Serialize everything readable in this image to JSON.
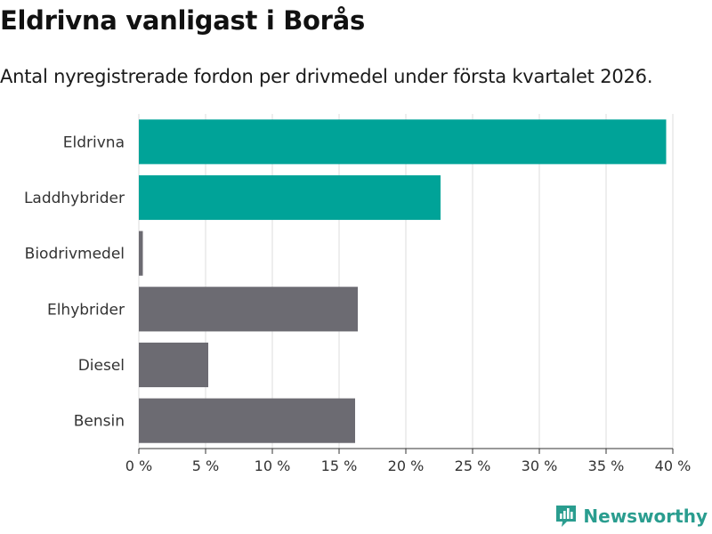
{
  "header": {
    "title": "Eldrivna vanligast i Borås",
    "subtitle": "Antal nyregistrerade fordon per drivmedel under första kvartalet 2026."
  },
  "brand": {
    "name": "Newsworthy",
    "icon": "newsworthy-logo-icon"
  },
  "colors": {
    "highlight": "#00A398",
    "default": "#6C6B72",
    "grid": "#dddddd"
  },
  "chart_data": {
    "type": "bar",
    "orientation": "horizontal",
    "categories": [
      "Eldrivna",
      "Laddhybrider",
      "Biodrivmedel",
      "Elhybrider",
      "Diesel",
      "Bensin"
    ],
    "values": [
      39.5,
      22.6,
      0.3,
      16.4,
      5.2,
      16.2
    ],
    "highlighted": [
      true,
      true,
      false,
      false,
      false,
      false
    ],
    "xlim": [
      0,
      40
    ],
    "xticks": [
      "0 %",
      "5 %",
      "10 %",
      "15 %",
      "20 %",
      "25 %",
      "30 %",
      "35 %",
      "40 %"
    ],
    "grid": true
  }
}
